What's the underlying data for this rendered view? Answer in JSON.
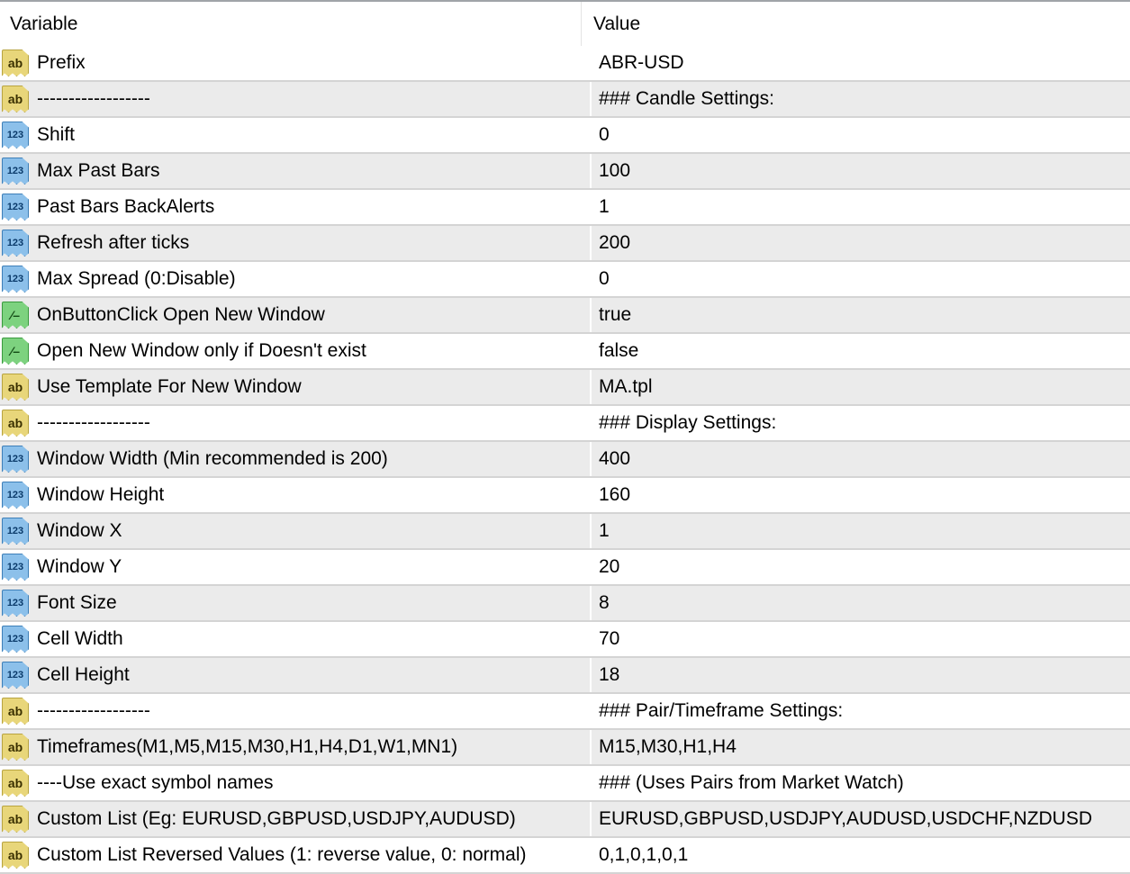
{
  "header": {
    "variable": "Variable",
    "value": "Value"
  },
  "rows": [
    {
      "type": "ab",
      "name": "Prefix",
      "value": "ABR-USD"
    },
    {
      "type": "ab",
      "name": "------------------",
      "value": "### Candle Settings:"
    },
    {
      "type": "123",
      "name": "Shift",
      "value": "0"
    },
    {
      "type": "123",
      "name": "Max Past Bars",
      "value": "100"
    },
    {
      "type": "123",
      "name": "Past Bars BackAlerts",
      "value": "1"
    },
    {
      "type": "123",
      "name": "Refresh after ticks",
      "value": "200"
    },
    {
      "type": "123",
      "name": "Max Spread (0:Disable)",
      "value": "0"
    },
    {
      "type": "bool",
      "name": "OnButtonClick Open New Window",
      "value": "true"
    },
    {
      "type": "bool",
      "name": "Open New Window only if Doesn't exist",
      "value": "false"
    },
    {
      "type": "ab",
      "name": "Use Template For New Window",
      "value": "MA.tpl"
    },
    {
      "type": "ab",
      "name": "------------------",
      "value": "### Display Settings:"
    },
    {
      "type": "123",
      "name": "Window Width (Min recommended is 200)",
      "value": "400"
    },
    {
      "type": "123",
      "name": "Window Height",
      "value": "160"
    },
    {
      "type": "123",
      "name": "Window X",
      "value": "1"
    },
    {
      "type": "123",
      "name": "Window Y",
      "value": "20"
    },
    {
      "type": "123",
      "name": "Font Size",
      "value": "8"
    },
    {
      "type": "123",
      "name": "Cell Width",
      "value": "70"
    },
    {
      "type": "123",
      "name": "Cell Height",
      "value": "18"
    },
    {
      "type": "ab",
      "name": "------------------",
      "value": "### Pair/Timeframe Settings:"
    },
    {
      "type": "ab",
      "name": "Timeframes(M1,M5,M15,M30,H1,H4,D1,W1,MN1)",
      "value": "M15,M30,H1,H4"
    },
    {
      "type": "ab",
      "name": "----Use exact symbol names",
      "value": "### (Uses Pairs from Market Watch)"
    },
    {
      "type": "ab",
      "name": "Custom List (Eg: EURUSD,GBPUSD,USDJPY,AUDUSD)",
      "value": "EURUSD,GBPUSD,USDJPY,AUDUSD,USDCHF,NZDUSD"
    },
    {
      "type": "ab",
      "name": "Custom List Reversed Values (1: reverse value, 0: normal)",
      "value": "0,1,0,1,0,1"
    }
  ],
  "icon_labels": {
    "ab": "ab",
    "123": "123",
    "bool": "⁄–"
  }
}
